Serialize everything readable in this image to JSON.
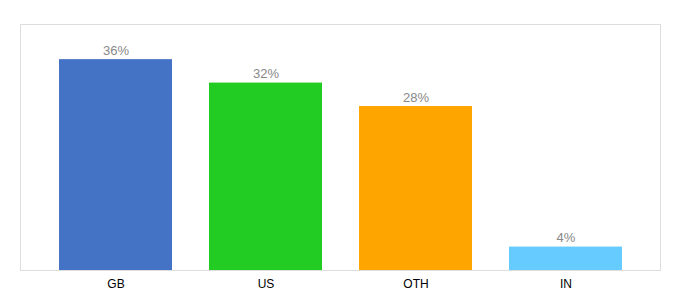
{
  "chart_data": {
    "type": "bar",
    "categories": [
      "GB",
      "US",
      "OTH",
      "IN"
    ],
    "values": [
      36,
      32,
      28,
      4
    ],
    "value_labels": [
      "36%",
      "32%",
      "28%",
      "4%"
    ],
    "colors": [
      "#4472c4",
      "#22cc22",
      "#ffa500",
      "#66ccff"
    ],
    "ylim": [
      0,
      42
    ],
    "data_labels": true,
    "tick_labels": "x",
    "grid": false
  }
}
